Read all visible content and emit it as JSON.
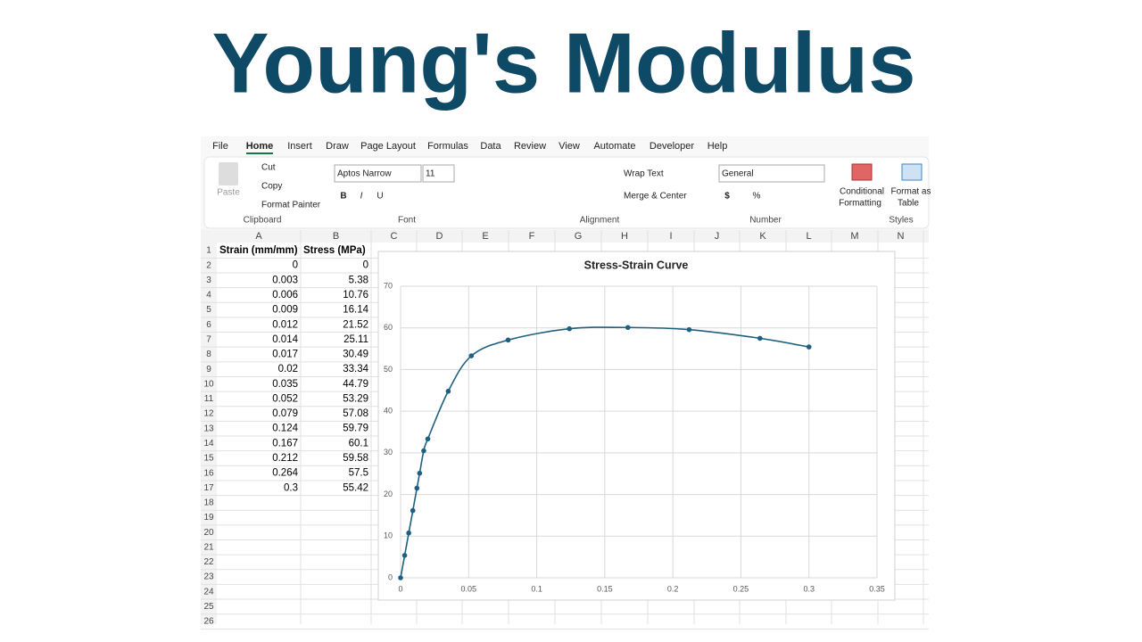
{
  "page_title": "Young's Modulus",
  "menu": {
    "tabs": [
      "File",
      "Home",
      "Insert",
      "Draw",
      "Page Layout",
      "Formulas",
      "Data",
      "Review",
      "View",
      "Automate",
      "Developer",
      "Help"
    ],
    "active_index": 1
  },
  "ribbon": {
    "clipboard": {
      "paste": "Paste",
      "cut": "Cut",
      "copy": "Copy",
      "format_painter": "Format Painter",
      "label": "Clipboard"
    },
    "font": {
      "name": "Aptos Narrow",
      "size": 11,
      "bold": "B",
      "italic": "I",
      "underline": "U",
      "label": "Font"
    },
    "alignment": {
      "wrap": "Wrap Text",
      "merge": "Merge & Center",
      "label": "Alignment"
    },
    "number": {
      "format": "General",
      "currency": "$",
      "percent": "%",
      "label": "Number"
    },
    "styles": {
      "conditional": [
        "Conditional",
        "Formatting"
      ],
      "table": [
        "Format as",
        "Table"
      ],
      "label": "Styles"
    }
  },
  "sheet": {
    "columns": [
      "A",
      "B",
      "C",
      "D",
      "E",
      "F",
      "G",
      "H",
      "I",
      "J",
      "K",
      "L",
      "M",
      "N"
    ],
    "row_numbers": [
      1,
      2,
      3,
      4,
      5,
      6,
      7,
      8,
      9,
      10,
      11,
      12,
      13,
      14,
      15,
      16,
      17,
      18,
      19,
      20,
      21,
      22,
      23,
      24,
      25,
      26
    ],
    "headers": [
      "Strain (mm/mm)",
      "Stress (MPa)"
    ]
  },
  "chart_data": {
    "type": "scatter",
    "title": "Stress-Strain Curve",
    "smooth": true,
    "grid": true,
    "x": [
      0,
      0.003,
      0.006,
      0.009,
      0.012,
      0.014,
      0.017,
      0.02,
      0.035,
      0.052,
      0.079,
      0.124,
      0.167,
      0.212,
      0.264,
      0.3
    ],
    "series": [
      {
        "color": "#1f5f7f",
        "values": [
          0,
          5.38,
          10.76,
          16.14,
          21.52,
          25.11,
          30.49,
          33.34,
          44.79,
          53.29,
          57.08,
          59.79,
          60.1,
          59.58,
          57.5,
          55.42
        ]
      }
    ],
    "xlim": [
      0,
      0.35
    ],
    "xticks": [
      0,
      0.05,
      0.1,
      0.15,
      0.2,
      0.25,
      0.3,
      0.35
    ],
    "ylim": [
      0,
      70
    ],
    "yticks": [
      0,
      10,
      20,
      30,
      40,
      50,
      60,
      70
    ]
  }
}
